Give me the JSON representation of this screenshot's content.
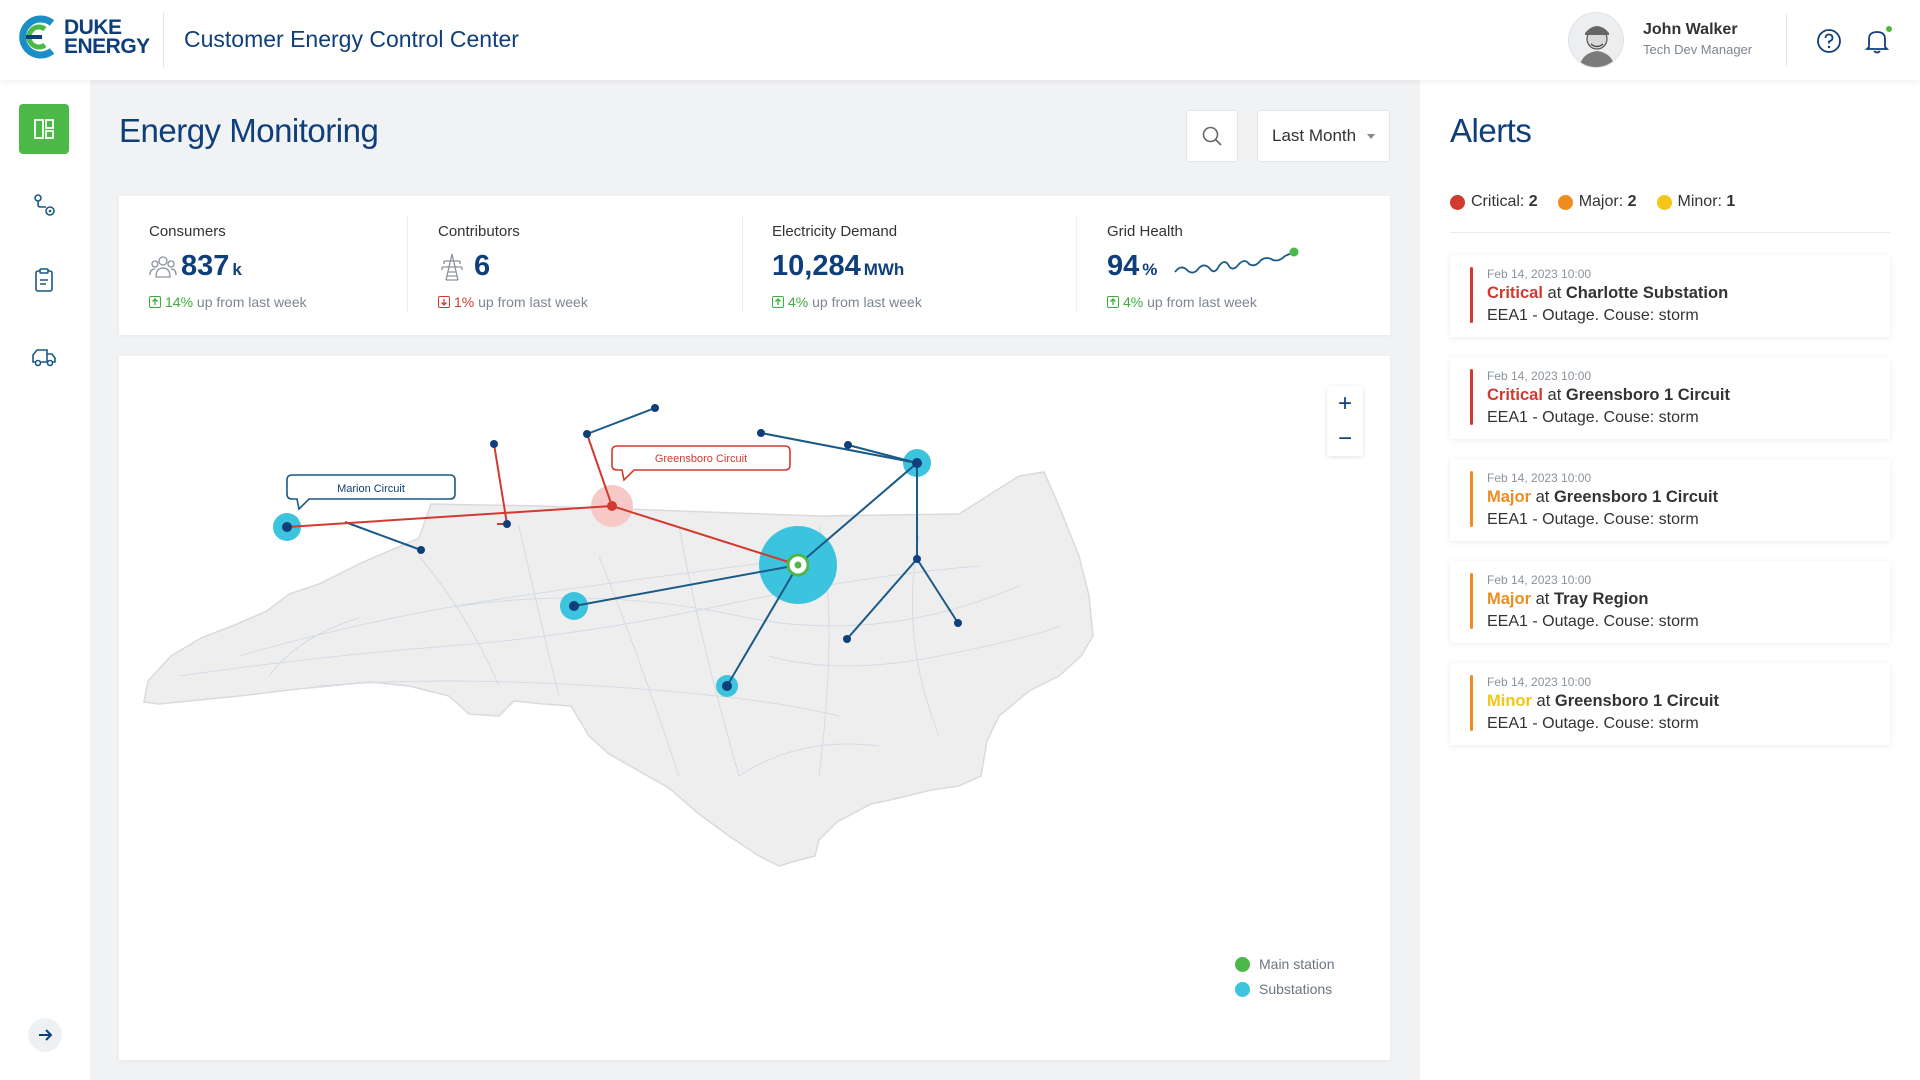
{
  "header": {
    "logo_line1": "DUKE",
    "logo_line2": "ENERGY",
    "app_title": "Customer Energy Control Center",
    "user": {
      "name": "John Walker",
      "role": "Tech Dev Manager"
    },
    "help_icon": "help-circle-icon",
    "notifications_icon": "bell-icon"
  },
  "sidebar": {
    "items": [
      {
        "name": "dashboard",
        "icon": "dashboard-icon",
        "active": true
      },
      {
        "name": "routes",
        "icon": "route-icon",
        "active": false
      },
      {
        "name": "reports",
        "icon": "clipboard-icon",
        "active": false
      },
      {
        "name": "vehicles",
        "icon": "vehicle-icon",
        "active": false
      }
    ],
    "expand_icon": "arrow-right-icon"
  },
  "main": {
    "title": "Energy Monitoring",
    "period": "Last Month",
    "kpis": [
      {
        "label": "Consumers",
        "value": "837",
        "unit": "k",
        "change": "14%",
        "change_text": "up from last week",
        "direction": "up"
      },
      {
        "label": "Contributors",
        "value": "6",
        "unit": "",
        "change": "1%",
        "change_text": "up from last week",
        "direction": "down"
      },
      {
        "label": "Electricity Demand",
        "value": "10,284",
        "unit": "MWh",
        "change": "4%",
        "change_text": "up from last week",
        "direction": "up"
      },
      {
        "label": "Grid Health",
        "value": "94",
        "unit": "%",
        "change": "4%",
        "change_text": "up from last week",
        "direction": "up"
      }
    ],
    "map": {
      "callouts": [
        "Marion Circuit",
        "Greensboro Circuit"
      ],
      "legend": {
        "main_station": "Main station",
        "substations": "Substations"
      },
      "zoom_in": "+",
      "zoom_out": "−",
      "colors": {
        "main": "#4cb848",
        "substation": "#3cc3de",
        "line": "#1a5a86",
        "critical": "#d23a2f"
      }
    }
  },
  "alerts": {
    "title": "Alerts",
    "summary": [
      {
        "label": "Critical:",
        "count": "2",
        "color": "#d23a2f"
      },
      {
        "label": "Major:",
        "count": "2",
        "color": "#f08c1e"
      },
      {
        "label": "Minor:",
        "count": "1",
        "color": "#f5c518"
      }
    ],
    "items": [
      {
        "time": "Feb 14, 2023 10:00",
        "severity": "Critical",
        "at": "at",
        "location": "Charlotte Substation",
        "desc": "EEA1 - Outage. Couse: storm",
        "color": "#d23a2f"
      },
      {
        "time": "Feb 14, 2023 10:00",
        "severity": "Critical",
        "at": "at",
        "location": "Greensboro 1 Circuit",
        "desc": "EEA1 - Outage. Couse: storm",
        "color": "#d23a2f"
      },
      {
        "time": "Feb 14, 2023 10:00",
        "severity": "Major",
        "at": "at",
        "location": "Greensboro 1 Circuit",
        "desc": "EEA1 - Outage. Couse: storm",
        "color": "#f08c1e"
      },
      {
        "time": "Feb 14, 2023 10:00",
        "severity": "Major",
        "at": "at",
        "location": "Tray Region",
        "desc": "EEA1 - Outage. Couse: storm",
        "color": "#f08c1e"
      },
      {
        "time": "Feb 14, 2023 10:00",
        "severity": "Minor",
        "at": "at",
        "location": "Greensboro 1 Circuit",
        "desc": "EEA1 - Outage. Couse: storm",
        "color": "#f5c518"
      }
    ]
  }
}
